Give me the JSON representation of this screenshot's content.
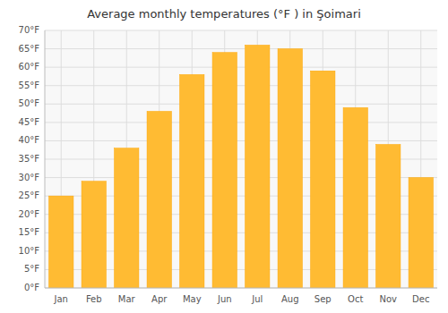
{
  "chart_data": {
    "type": "bar",
    "title": "Average monthly temperatures (°F ) in Şoimari",
    "categories": [
      "Jan",
      "Feb",
      "Mar",
      "Apr",
      "May",
      "Jun",
      "Jul",
      "Aug",
      "Sep",
      "Oct",
      "Nov",
      "Dec"
    ],
    "values": [
      25,
      29,
      38,
      48,
      58,
      64,
      66,
      65,
      59,
      49,
      39,
      30
    ],
    "color": "#FFBB33",
    "ylim": [
      0,
      70
    ],
    "yticks": [
      {
        "value": 0,
        "label": "0°F"
      },
      {
        "value": 5,
        "label": "5°F"
      },
      {
        "value": 10,
        "label": "10°F"
      },
      {
        "value": 15,
        "label": "15°F"
      },
      {
        "value": 20,
        "label": "20°F"
      },
      {
        "value": 25,
        "label": "25°F"
      },
      {
        "value": 30,
        "label": "30°F"
      },
      {
        "value": 35,
        "label": "35°F"
      },
      {
        "value": 40,
        "label": "40°F"
      },
      {
        "value": 45,
        "label": "45°F"
      },
      {
        "value": 50,
        "label": "50°F"
      },
      {
        "value": 55,
        "label": "55°F"
      },
      {
        "value": 60,
        "label": "60°F"
      },
      {
        "value": 65,
        "label": "65°F"
      },
      {
        "value": 70,
        "label": "70°F"
      }
    ],
    "grid": true
  }
}
